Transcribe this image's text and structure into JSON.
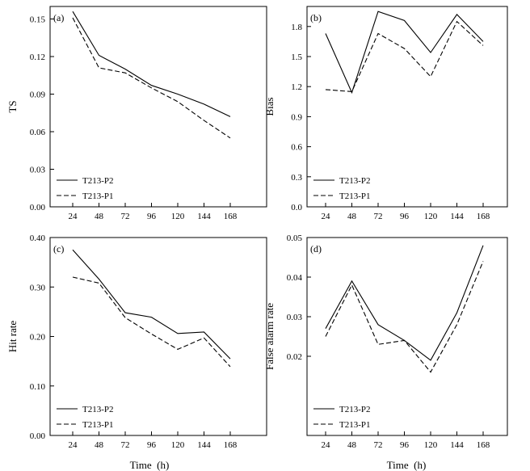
{
  "figure": {
    "x_axis_label": "Time  (h)",
    "legend_labels": [
      "T213-P2",
      "T213-P1"
    ]
  },
  "chart_data": [
    {
      "panel_label": "(a)",
      "type": "line",
      "ylabel": "TS",
      "xlabel": "",
      "categories": [
        "24",
        "48",
        "72",
        "96",
        "120",
        "144",
        "168"
      ],
      "ylim": [
        0,
        0.16
      ],
      "yticks": [
        0,
        0.03,
        0.06,
        0.09,
        0.12,
        0.15
      ],
      "ytick_labels": [
        "0.00",
        "0.03",
        "0.06",
        "0.09",
        "0.12",
        "0.15"
      ],
      "legend_position": "bottom-left",
      "series": [
        {
          "name": "T213-P2",
          "style": "solid",
          "values": [
            0.156,
            0.121,
            0.11,
            0.097,
            0.09,
            0.082,
            0.072
          ]
        },
        {
          "name": "T213-P1",
          "style": "dashed",
          "values": [
            0.151,
            0.111,
            0.107,
            0.095,
            0.084,
            0.069,
            0.055
          ]
        }
      ]
    },
    {
      "panel_label": "(b)",
      "type": "line",
      "ylabel": "Bias",
      "xlabel": "",
      "categories": [
        "24",
        "48",
        "72",
        "96",
        "120",
        "144",
        "168"
      ],
      "ylim": [
        0,
        2.0
      ],
      "yticks": [
        0,
        0.3,
        0.6,
        0.9,
        1.2,
        1.5,
        1.8
      ],
      "ytick_labels": [
        "0.0",
        "0.3",
        "0.6",
        "0.9",
        "1.2",
        "1.5",
        "1.8"
      ],
      "legend_position": "bottom-left",
      "series": [
        {
          "name": "T213-P2",
          "style": "solid",
          "values": [
            1.73,
            1.14,
            1.95,
            1.86,
            1.54,
            1.92,
            1.65
          ]
        },
        {
          "name": "T213-P1",
          "style": "dashed",
          "values": [
            1.17,
            1.15,
            1.73,
            1.58,
            1.3,
            1.85,
            1.61
          ]
        }
      ]
    },
    {
      "panel_label": "(c)",
      "type": "line",
      "ylabel": "Hit rate",
      "xlabel": "Time  (h)",
      "categories": [
        "24",
        "48",
        "72",
        "96",
        "120",
        "144",
        "168"
      ],
      "ylim": [
        0,
        0.4
      ],
      "yticks": [
        0,
        0.1,
        0.2,
        0.3,
        0.4
      ],
      "ytick_labels": [
        "0.00",
        "0.10",
        "0.20",
        "0.30",
        "0.40"
      ],
      "legend_position": "bottom-left",
      "series": [
        {
          "name": "T213-P2",
          "style": "solid",
          "values": [
            0.375,
            0.316,
            0.248,
            0.239,
            0.206,
            0.209,
            0.155
          ]
        },
        {
          "name": "T213-P1",
          "style": "dashed",
          "values": [
            0.32,
            0.308,
            0.238,
            0.205,
            0.174,
            0.197,
            0.139
          ]
        }
      ]
    },
    {
      "panel_label": "(d)",
      "type": "line",
      "ylabel": "False alarm rate",
      "xlabel": "Time  (h)",
      "categories": [
        "24",
        "48",
        "72",
        "96",
        "120",
        "144",
        "168"
      ],
      "ylim": [
        0,
        0.05
      ],
      "yticks": [
        0.02,
        0.03,
        0.04,
        0.05
      ],
      "ytick_labels": [
        "0.02",
        "0.03",
        "0.04",
        "0.05"
      ],
      "legend_position": "bottom-left",
      "series": [
        {
          "name": "T213-P2",
          "style": "solid",
          "values": [
            0.027,
            0.039,
            0.028,
            0.024,
            0.019,
            0.031,
            0.048
          ]
        },
        {
          "name": "T213-P1",
          "style": "dashed",
          "values": [
            0.025,
            0.038,
            0.023,
            0.024,
            0.016,
            0.028,
            0.044
          ]
        }
      ]
    }
  ]
}
